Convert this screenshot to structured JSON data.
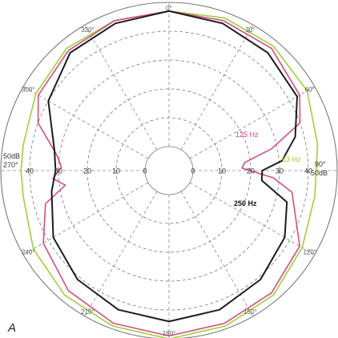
{
  "chart_data": {
    "type": "polar",
    "panel_letter": "A",
    "rings": [
      {
        "value": 0,
        "label": "0"
      },
      {
        "value": 10,
        "label": "10"
      },
      {
        "value": 20,
        "label": "20"
      },
      {
        "value": 30,
        "label": "30"
      },
      {
        "value": 40,
        "label": "40"
      },
      {
        "value": 50,
        "label": "50"
      }
    ],
    "ring_label_values": [
      0,
      10,
      20,
      30,
      40
    ],
    "angle_labels": [
      {
        "angle": 0,
        "text": "0°"
      },
      {
        "angle": 30,
        "text": "30°"
      },
      {
        "angle": 60,
        "text": "60°"
      },
      {
        "angle": 90,
        "text": "90°"
      },
      {
        "angle": 120,
        "text": "120°"
      },
      {
        "angle": 150,
        "text": "150°"
      },
      {
        "angle": 180,
        "text": "180°"
      },
      {
        "angle": 210,
        "text": "210°"
      },
      {
        "angle": 240,
        "text": "240°"
      },
      {
        "angle": 270,
        "text": "270°"
      },
      {
        "angle": 300,
        "text": "300°"
      },
      {
        "angle": 330,
        "text": "330°"
      }
    ],
    "side_labels": {
      "left_db": "50dB",
      "left_angle": "270°",
      "right_angle": "90°",
      "right_db": "50dB"
    },
    "series": [
      {
        "name": "63 Hz",
        "color": "#9acd32",
        "points": [
          [
            0,
            47
          ],
          [
            20,
            48
          ],
          [
            40,
            48
          ],
          [
            60,
            47
          ],
          [
            80,
            44
          ],
          [
            100,
            43
          ],
          [
            120,
            45
          ],
          [
            140,
            48
          ],
          [
            160,
            49
          ],
          [
            180,
            50
          ],
          [
            200,
            49
          ],
          [
            220,
            48
          ],
          [
            240,
            46
          ],
          [
            260,
            43
          ],
          [
            270,
            43
          ],
          [
            280,
            43
          ],
          [
            300,
            45
          ],
          [
            320,
            47
          ],
          [
            340,
            47
          ],
          [
            360,
            47
          ]
        ]
      },
      {
        "name": "125 Hz",
        "color": "#d4447a",
        "points": [
          [
            0,
            47
          ],
          [
            20,
            47
          ],
          [
            40,
            47
          ],
          [
            60,
            44
          ],
          [
            70,
            40
          ],
          [
            78,
            28
          ],
          [
            84,
            18
          ],
          [
            88,
            17
          ],
          [
            94,
            28
          ],
          [
            100,
            35
          ],
          [
            120,
            44
          ],
          [
            140,
            47
          ],
          [
            160,
            48
          ],
          [
            180,
            49
          ],
          [
            200,
            48
          ],
          [
            220,
            46
          ],
          [
            240,
            42
          ],
          [
            255,
            36
          ],
          [
            262,
            28
          ],
          [
            266,
            32
          ],
          [
            272,
            29
          ],
          [
            278,
            31
          ],
          [
            290,
            40
          ],
          [
            300,
            44
          ],
          [
            320,
            46
          ],
          [
            340,
            47
          ],
          [
            360,
            47
          ]
        ]
      },
      {
        "name": "250 Hz",
        "color": "#111111",
        "points": [
          [
            0,
            47
          ],
          [
            20,
            46
          ],
          [
            40,
            45
          ],
          [
            60,
            43
          ],
          [
            75,
            37
          ],
          [
            85,
            31
          ],
          [
            90,
            24
          ],
          [
            96,
            24
          ],
          [
            105,
            34
          ],
          [
            120,
            38
          ],
          [
            140,
            41
          ],
          [
            160,
            43
          ],
          [
            180,
            44
          ],
          [
            200,
            43
          ],
          [
            220,
            41
          ],
          [
            240,
            38
          ],
          [
            260,
            33
          ],
          [
            270,
            31
          ],
          [
            280,
            32
          ],
          [
            300,
            40
          ],
          [
            320,
            45
          ],
          [
            340,
            46
          ],
          [
            360,
            47
          ]
        ]
      }
    ]
  }
}
